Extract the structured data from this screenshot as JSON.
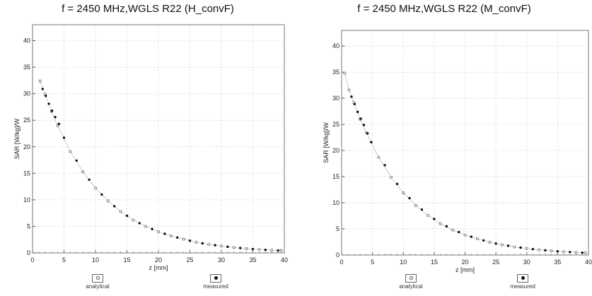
{
  "chart_data": [
    {
      "type": "scatter",
      "title": "f = 2450 MHz,WGLS R22 (H_convF)",
      "xlabel": "z [mm]",
      "ylabel": "SAR [W/kg]/W",
      "xlim": [
        0,
        40
      ],
      "ylim": [
        0,
        43
      ],
      "xticks": [
        "0",
        "5",
        "10",
        "15",
        "20",
        "25",
        "30",
        "35",
        "40"
      ],
      "yticks": [
        "0",
        "5",
        "10",
        "15",
        "20",
        "25",
        "30",
        "35",
        "40"
      ],
      "grid": true,
      "legend_position": "bottom",
      "series": [
        {
          "name": "analytical",
          "marker": "hollow",
          "x": [
            1.2,
            2,
            3,
            4,
            6,
            8,
            10,
            12,
            14,
            16,
            18,
            20,
            22,
            24,
            26,
            28,
            30,
            32,
            34,
            36,
            38,
            39.5
          ],
          "y": [
            32.4,
            29.9,
            26.7,
            24.0,
            19.1,
            15.3,
            12.2,
            9.8,
            7.8,
            6.2,
            5.0,
            4.0,
            3.2,
            2.6,
            2.0,
            1.6,
            1.3,
            1.0,
            0.8,
            0.66,
            0.53,
            0.45
          ]
        },
        {
          "name": "measured",
          "marker": "filled",
          "x": [
            1.6,
            2.1,
            2.6,
            3.1,
            3.6,
            4.2,
            5.0,
            7.0,
            9.0,
            11.0,
            13.0,
            15.0,
            17.0,
            19.0,
            21.0,
            23.0,
            25.0,
            27.0,
            29.0,
            31.0,
            33.0,
            35.0,
            37.0,
            39.0
          ],
          "y": [
            30.9,
            29.6,
            28.1,
            26.8,
            25.6,
            24.3,
            21.7,
            17.4,
            13.8,
            11.0,
            8.8,
            7.0,
            5.6,
            4.5,
            3.6,
            2.9,
            2.3,
            1.8,
            1.45,
            1.15,
            0.92,
            0.73,
            0.58,
            0.46
          ]
        }
      ]
    },
    {
      "type": "scatter",
      "title": "f = 2450 MHz,WGLS R22 (M_convF)",
      "xlabel": "z [mm]",
      "ylabel": "SAR [W/kg]/W",
      "xlim": [
        0,
        40
      ],
      "ylim": [
        0,
        43
      ],
      "xticks": [
        "0",
        "5",
        "10",
        "15",
        "20",
        "25",
        "30",
        "35",
        "40"
      ],
      "yticks": [
        "0",
        "5",
        "10",
        "15",
        "20",
        "25",
        "30",
        "35",
        "40"
      ],
      "grid": true,
      "legend_position": "bottom",
      "series": [
        {
          "name": "analytical",
          "marker": "hollow",
          "x": [
            0.5,
            1.2,
            2,
            3,
            4,
            6,
            8,
            10,
            12,
            14,
            16,
            18,
            20,
            22,
            24,
            26,
            28,
            30,
            32,
            34,
            36,
            38,
            39.5
          ],
          "y": [
            34.8,
            31.6,
            29.2,
            26.0,
            23.4,
            18.7,
            14.9,
            11.9,
            9.5,
            7.6,
            6.0,
            4.8,
            3.85,
            3.1,
            2.45,
            1.95,
            1.55,
            1.25,
            1.0,
            0.8,
            0.64,
            0.52,
            0.45
          ]
        },
        {
          "name": "measured",
          "marker": "filled",
          "x": [
            1.6,
            2.1,
            2.6,
            3.1,
            3.6,
            4.2,
            4.8,
            7.0,
            9.0,
            11.0,
            13.0,
            15.0,
            17.0,
            19.0,
            21.0,
            23.0,
            25.0,
            27.0,
            29.0,
            31.0,
            33.0,
            35.0,
            37.0,
            39.0
          ],
          "y": [
            30.3,
            28.9,
            27.4,
            26.1,
            24.9,
            23.3,
            21.6,
            17.2,
            13.6,
            10.9,
            8.7,
            6.9,
            5.5,
            4.4,
            3.5,
            2.8,
            2.2,
            1.78,
            1.42,
            1.13,
            0.9,
            0.72,
            0.57,
            0.45
          ]
        }
      ]
    }
  ]
}
